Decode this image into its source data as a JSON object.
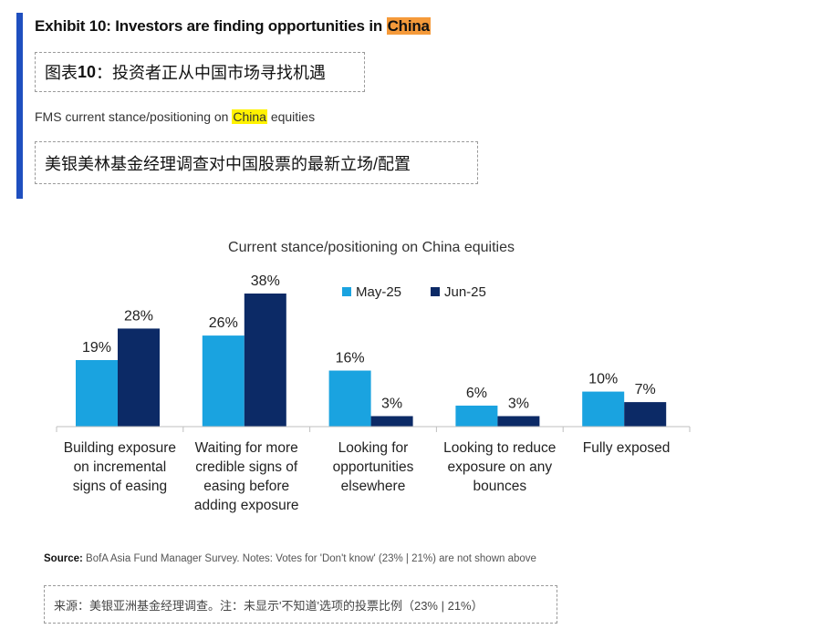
{
  "header": {
    "exhibit_prefix": "Exhibit 10: Investors are finding opportunities in ",
    "exhibit_highlight": "China",
    "cn_prefix": "图表 ",
    "cn_number": "10",
    "cn_rest": "：投资者正从中国市场寻找机遇",
    "subtitle_prefix": "FMS current stance/positioning on ",
    "subtitle_highlight": "China",
    "subtitle_suffix": " equities",
    "cn_subtitle": "美银美林基金经理调查对中国股票的最新立场/配置"
  },
  "chart_data": {
    "type": "bar",
    "title": "Current stance/positioning on China equities",
    "xlabel": "",
    "ylabel": "",
    "categories": [
      [
        "Building exposure",
        "on incremental",
        "signs of easing"
      ],
      [
        "Waiting for more",
        "credible signs of",
        "easing before",
        "adding exposure"
      ],
      [
        "Looking for",
        "opportunities",
        "elsewhere"
      ],
      [
        "Looking to reduce",
        "exposure on any",
        "bounces"
      ],
      [
        "Fully exposed"
      ]
    ],
    "series": [
      {
        "name": "May-25",
        "color": "#1aa3e0",
        "values": [
          19,
          26,
          16,
          6,
          10
        ],
        "labels": [
          "19%",
          "26%",
          "16%",
          "6%",
          "10%"
        ]
      },
      {
        "name": "Jun-25",
        "color": "#0c2a66",
        "values": [
          28,
          38,
          3,
          3,
          7
        ],
        "labels": [
          "28%",
          "38%",
          "3%",
          "3%",
          "7%"
        ]
      }
    ],
    "ylim": [
      0,
      38
    ],
    "grid": false,
    "legend_position": "top-center"
  },
  "footer": {
    "source_label": "Source:",
    "source_text": " BofA Asia Fund Manager Survey. Notes: Votes for 'Don't know' (23% | 21%) are not shown above",
    "cn_source": "来源：美银亚洲基金经理调查。注：未显示'不知道'选项的投票比例（23% | 21%）"
  }
}
